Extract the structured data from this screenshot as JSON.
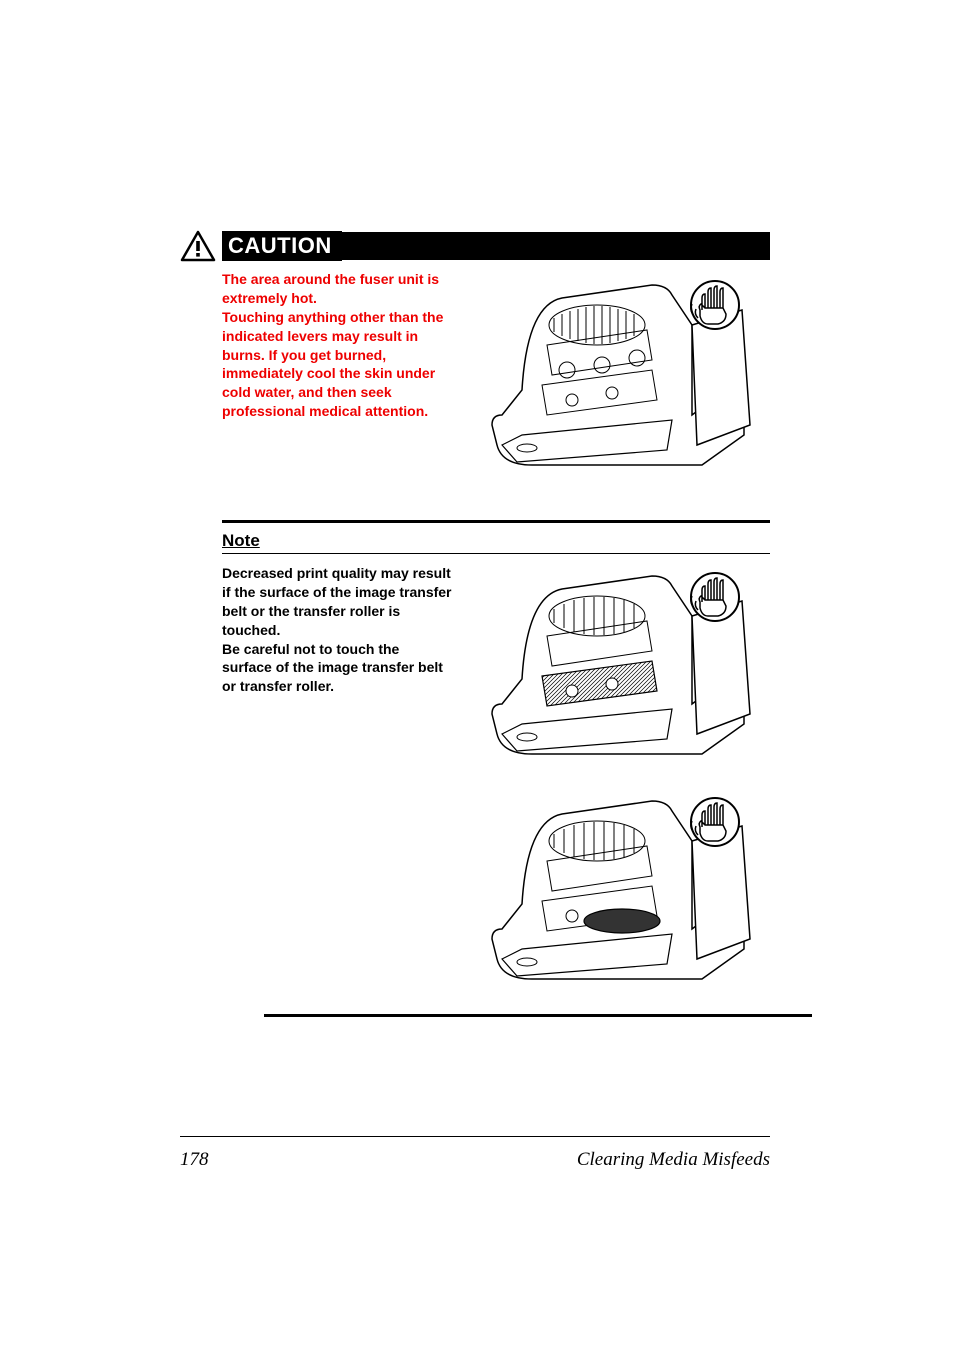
{
  "caution": {
    "label": "CAUTION",
    "text": "The area around the fuser unit is extremely hot.\nTouching anything other than the indicated levers may result in burns. If you get burned, immediately cool the skin under cold water, and then seek professional medical attention.",
    "text_color": "#ee0000",
    "label_bg": "#000000",
    "label_color": "#ffffff"
  },
  "note": {
    "title": "Note",
    "text": "Decreased print quality may result if the surface of the image transfer belt or the transfer roller is touched.\nBe careful not to touch the surface of the image transfer belt or transfer roller.",
    "text_color": "#000000"
  },
  "footer": {
    "page_number": "178",
    "title": "Clearing Media Misfeeds"
  },
  "colors": {
    "background": "#ffffff",
    "text": "#000000",
    "divider": "#000000"
  }
}
